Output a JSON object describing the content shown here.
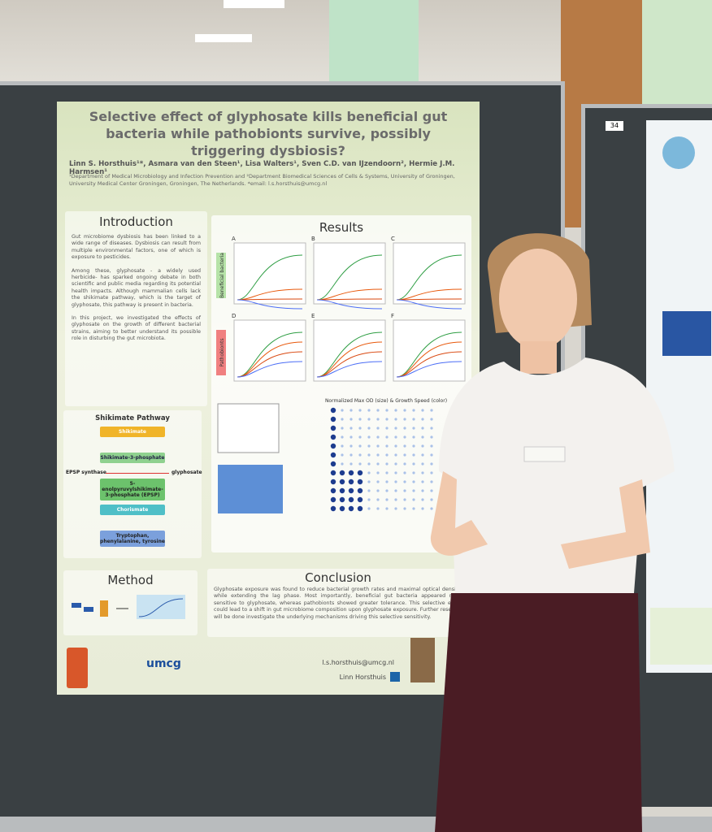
{
  "poster": {
    "title": "Selective effect of glyphosate kills beneficial gut bacteria while pathobionts survive, possibly triggering dysbiosis?",
    "authors": "Linn S. Horsthuis¹*, Asmara van den Steen¹, Lisa Walters¹, Sven C.D. van IJzendoorn², Hermie J.M. Harmsen¹",
    "affiliation": "¹Department of Medical Microbiology and Infection Prevention and ²Department Biomedical Sciences of Cells & Systems, University of Groningen, University Medical Center Groningen, Groningen, The Netherlands. *email: l.s.horsthuis@umcg.nl",
    "introduction": {
      "heading": "Introduction",
      "paragraphs": [
        "Gut microbiome dysbiosis has been linked to a wide range of diseases. Dysbiosis can result from multiple environmental factors, one of which is exposure to pesticides.",
        "Among these, glyphosate - a widely used herbicide- has sparked ongoing debate in both scientific and public media regarding its potential health impacts. Although mammalian cells lack the shikimate pathway, which is the target of glyphosate, this pathway is present in bacteria.",
        "In this project, we investigated the effects of glyphosate on the growth of different bacterial strains, aiming to better understand its possible role in disturbing the gut microbiota."
      ]
    },
    "results": {
      "heading": "Results",
      "group_labels": [
        "Beneficial bacteria",
        "Pathobionts"
      ],
      "panels": [
        "A",
        "B",
        "C",
        "D",
        "E",
        "F"
      ],
      "dot_plot_title": "Normalized Max OD (size) & Growth Speed (color)"
    },
    "shikimate": {
      "heading": "Shikimate Pathway",
      "steps": [
        "Shikimate",
        "Shikimate-3-phosphate",
        "5-enolpyruvylshikimate-3-phosphate (EPSP)",
        "Chorismate",
        "Tryptophan, phenylalanine, tyrosine"
      ],
      "enzyme": "EPSP synthase",
      "inhibitor": "glyphosate"
    },
    "method": {
      "heading": "Method"
    },
    "conclusion": {
      "heading": "Conclusion",
      "text": "Glyphosate exposure was found to reduce bacterial growth rates and maximal optical density, while extending the lag phase. Most importantly, beneficial gut bacteria appeared more sensitive to glyphosate, whereas pathobionts showed greater tolerance. This selective effect could lead to a shift in gut microbiome composition upon glyphosate exposure. Further research will be done investigate the underlying mechanisms driving this selective sensitivity."
    },
    "footer": {
      "logo": "umcg",
      "email": "l.s.horsthuis@umcg.nl",
      "name": "Linn Horsthuis"
    }
  },
  "second_poster": {
    "number": "34"
  }
}
